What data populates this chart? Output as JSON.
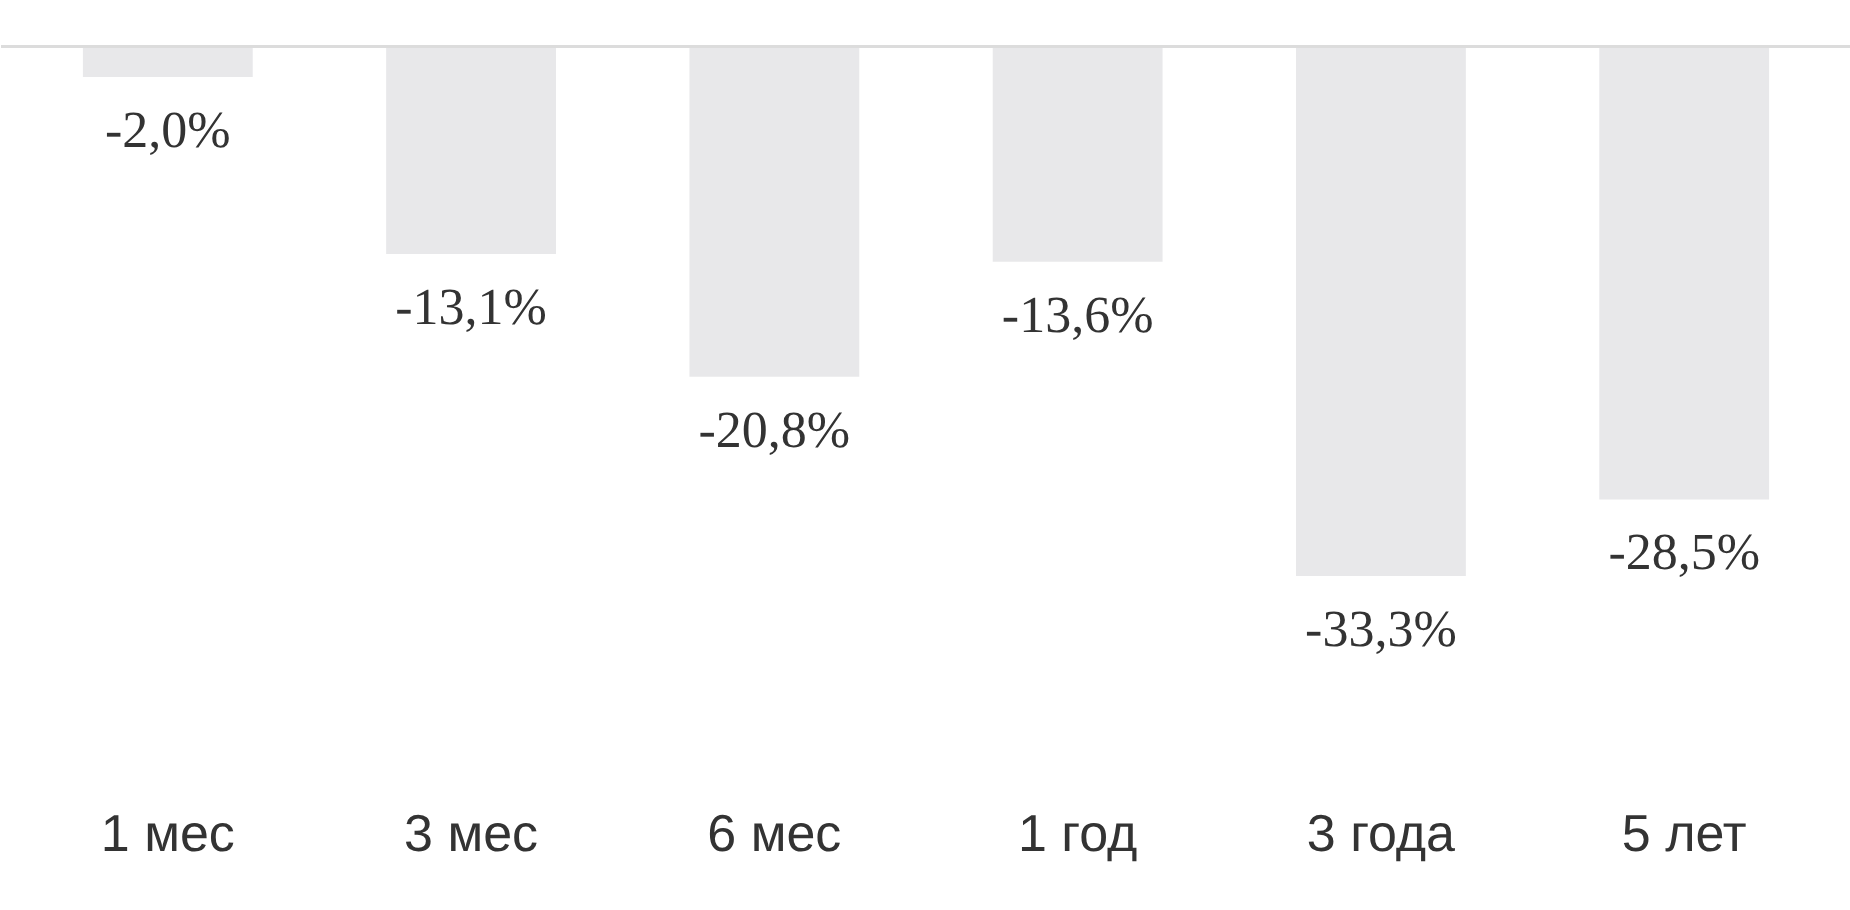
{
  "chart_data": {
    "type": "bar",
    "categories": [
      "1 мес",
      "3 мес",
      "6 мес",
      "1 год",
      "3 года",
      "5 лет"
    ],
    "values": [
      -2.0,
      -13.1,
      -20.8,
      -13.6,
      -33.3,
      -28.5
    ],
    "value_labels": [
      "-2,0%",
      "-13,1%",
      "-20,8%",
      "-13,6%",
      "-33,3%",
      "-28,5%"
    ],
    "color": "#e8e8ea"
  }
}
